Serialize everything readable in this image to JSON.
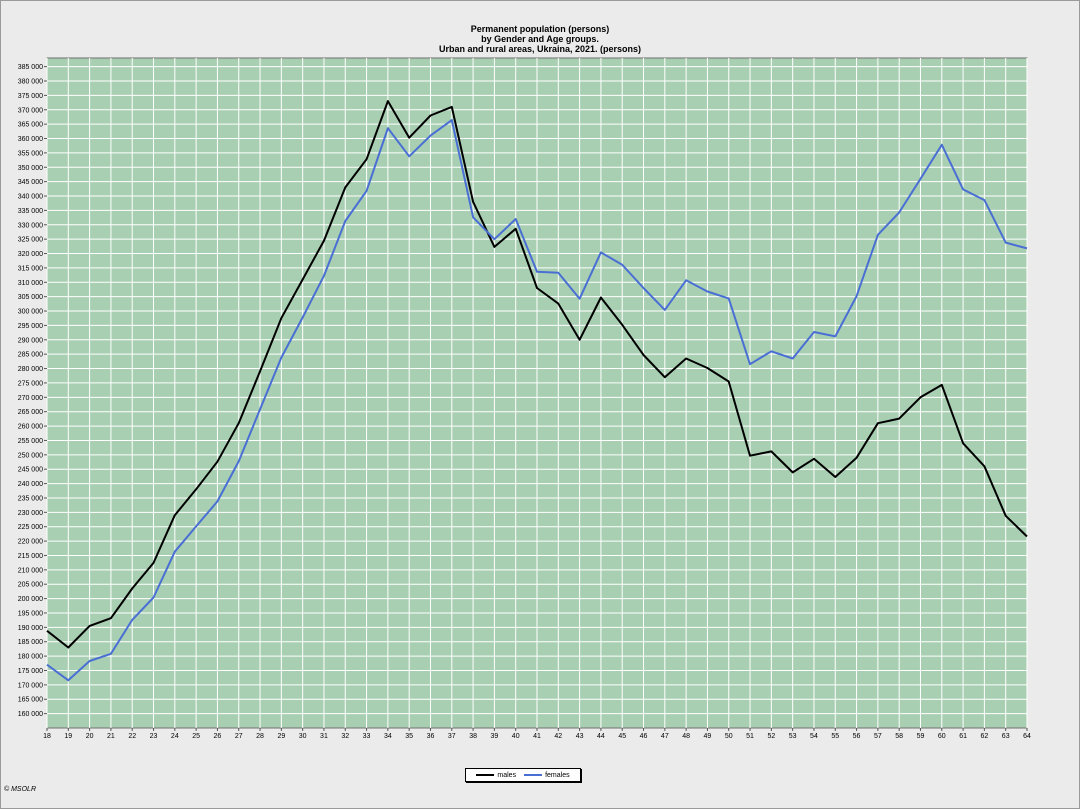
{
  "chart_data": {
    "type": "line",
    "title": [
      "Permanent population (persons)",
      "by Gender and Age groups.",
      "Urban and rural areas, Ukraina, 2021. (persons)"
    ],
    "x": [
      18,
      19,
      20,
      21,
      22,
      23,
      24,
      25,
      26,
      27,
      28,
      29,
      30,
      31,
      32,
      33,
      34,
      35,
      36,
      37,
      38,
      39,
      40,
      41,
      42,
      43,
      44,
      45,
      46,
      47,
      48,
      49,
      50,
      51,
      52,
      53,
      54,
      55,
      56,
      57,
      58,
      59,
      60,
      61,
      62,
      63,
      64
    ],
    "ylim": [
      155000,
      388000
    ],
    "y_ticks": [
      160000,
      165000,
      170000,
      175000,
      180000,
      185000,
      190000,
      195000,
      200000,
      205000,
      210000,
      215000,
      220000,
      225000,
      230000,
      235000,
      240000,
      245000,
      250000,
      255000,
      260000,
      265000,
      270000,
      275000,
      280000,
      285000,
      290000,
      295000,
      300000,
      305000,
      310000,
      315000,
      320000,
      325000,
      330000,
      335000,
      340000,
      345000,
      350000,
      355000,
      360000,
      365000,
      370000,
      375000,
      380000,
      385000
    ],
    "grid": true,
    "legend_position": "bottom",
    "series": [
      {
        "name": "males",
        "color": "#000000",
        "values": [
          188800,
          183000,
          190500,
          193200,
          203500,
          212400,
          229000,
          238000,
          247600,
          261000,
          279000,
          297500,
          311000,
          324500,
          343000,
          352800,
          373000,
          360300,
          368000,
          371000,
          338000,
          322300,
          328600,
          308000,
          302600,
          290000,
          304700,
          295200,
          284700,
          277000,
          283500,
          280200,
          275500,
          249700,
          251200,
          243900,
          248600,
          242300,
          249000,
          261000,
          262600,
          270000,
          274300,
          254000,
          246000,
          228800,
          221600
        ]
      },
      {
        "name": "females",
        "color": "#4a6fd4",
        "values": [
          177000,
          171600,
          178300,
          180800,
          192600,
          200400,
          216300,
          225100,
          233800,
          247700,
          265800,
          283800,
          297800,
          312300,
          331300,
          341800,
          363600,
          353800,
          361000,
          366400,
          332600,
          325000,
          332000,
          313700,
          313300,
          304300,
          320400,
          316100,
          308000,
          300400,
          310700,
          306800,
          304400,
          281500,
          286000,
          283500,
          292700,
          291200,
          305200,
          326500,
          334300,
          346000,
          357800,
          342300,
          338600,
          323800,
          321800
        ]
      }
    ]
  },
  "copyright": "© MSOLR"
}
